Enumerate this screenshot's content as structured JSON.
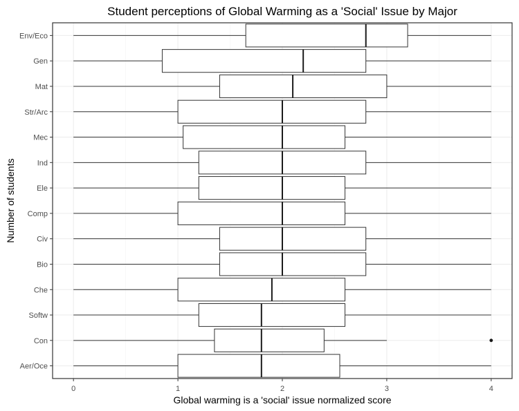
{
  "chart_data": {
    "type": "boxplot",
    "title": "Student perceptions of Global Warming as a 'Social' Issue by Major",
    "xlabel": "Global warming is a 'social' issue normalized score",
    "ylabel": "Number of students",
    "xlim": [
      -0.2,
      4.2
    ],
    "x_ticks": [
      0,
      1,
      2,
      3,
      4
    ],
    "grid": true,
    "categories": [
      "Env/Eco",
      "Gen",
      "Mat",
      "Str/Arc",
      "Mec",
      "Ind",
      "Ele",
      "Comp",
      "Civ",
      "Bio",
      "Che",
      "Softw",
      "Con",
      "Aer/Oce"
    ],
    "series": [
      {
        "category": "Env/Eco",
        "min": 0,
        "q1": 1.65,
        "median": 2.8,
        "q3": 3.2,
        "max": 4,
        "outliers": []
      },
      {
        "category": "Gen",
        "min": 0,
        "q1": 0.85,
        "median": 2.2,
        "q3": 2.8,
        "max": 4,
        "outliers": []
      },
      {
        "category": "Mat",
        "min": 0,
        "q1": 1.4,
        "median": 2.1,
        "q3": 3.0,
        "max": 4,
        "outliers": []
      },
      {
        "category": "Str/Arc",
        "min": 0,
        "q1": 1.0,
        "median": 2.0,
        "q3": 2.8,
        "max": 4,
        "outliers": []
      },
      {
        "category": "Mec",
        "min": 0,
        "q1": 1.05,
        "median": 2.0,
        "q3": 2.6,
        "max": 4,
        "outliers": []
      },
      {
        "category": "Ind",
        "min": 0,
        "q1": 1.2,
        "median": 2.0,
        "q3": 2.8,
        "max": 4,
        "outliers": []
      },
      {
        "category": "Ele",
        "min": 0,
        "q1": 1.2,
        "median": 2.0,
        "q3": 2.6,
        "max": 4,
        "outliers": []
      },
      {
        "category": "Comp",
        "min": 0,
        "q1": 1.0,
        "median": 2.0,
        "q3": 2.6,
        "max": 4,
        "outliers": []
      },
      {
        "category": "Civ",
        "min": 0,
        "q1": 1.4,
        "median": 2.0,
        "q3": 2.8,
        "max": 4,
        "outliers": []
      },
      {
        "category": "Bio",
        "min": 0,
        "q1": 1.4,
        "median": 2.0,
        "q3": 2.8,
        "max": 4,
        "outliers": []
      },
      {
        "category": "Che",
        "min": 0,
        "q1": 1.0,
        "median": 1.9,
        "q3": 2.6,
        "max": 4,
        "outliers": []
      },
      {
        "category": "Softw",
        "min": 0,
        "q1": 1.2,
        "median": 1.8,
        "q3": 2.6,
        "max": 4,
        "outliers": []
      },
      {
        "category": "Con",
        "min": 0,
        "q1": 1.35,
        "median": 1.8,
        "q3": 2.4,
        "max": 3.0,
        "outliers": [
          4
        ]
      },
      {
        "category": "Aer/Oce",
        "min": 0,
        "q1": 1.0,
        "median": 1.8,
        "q3": 2.55,
        "max": 4,
        "outliers": []
      }
    ]
  }
}
